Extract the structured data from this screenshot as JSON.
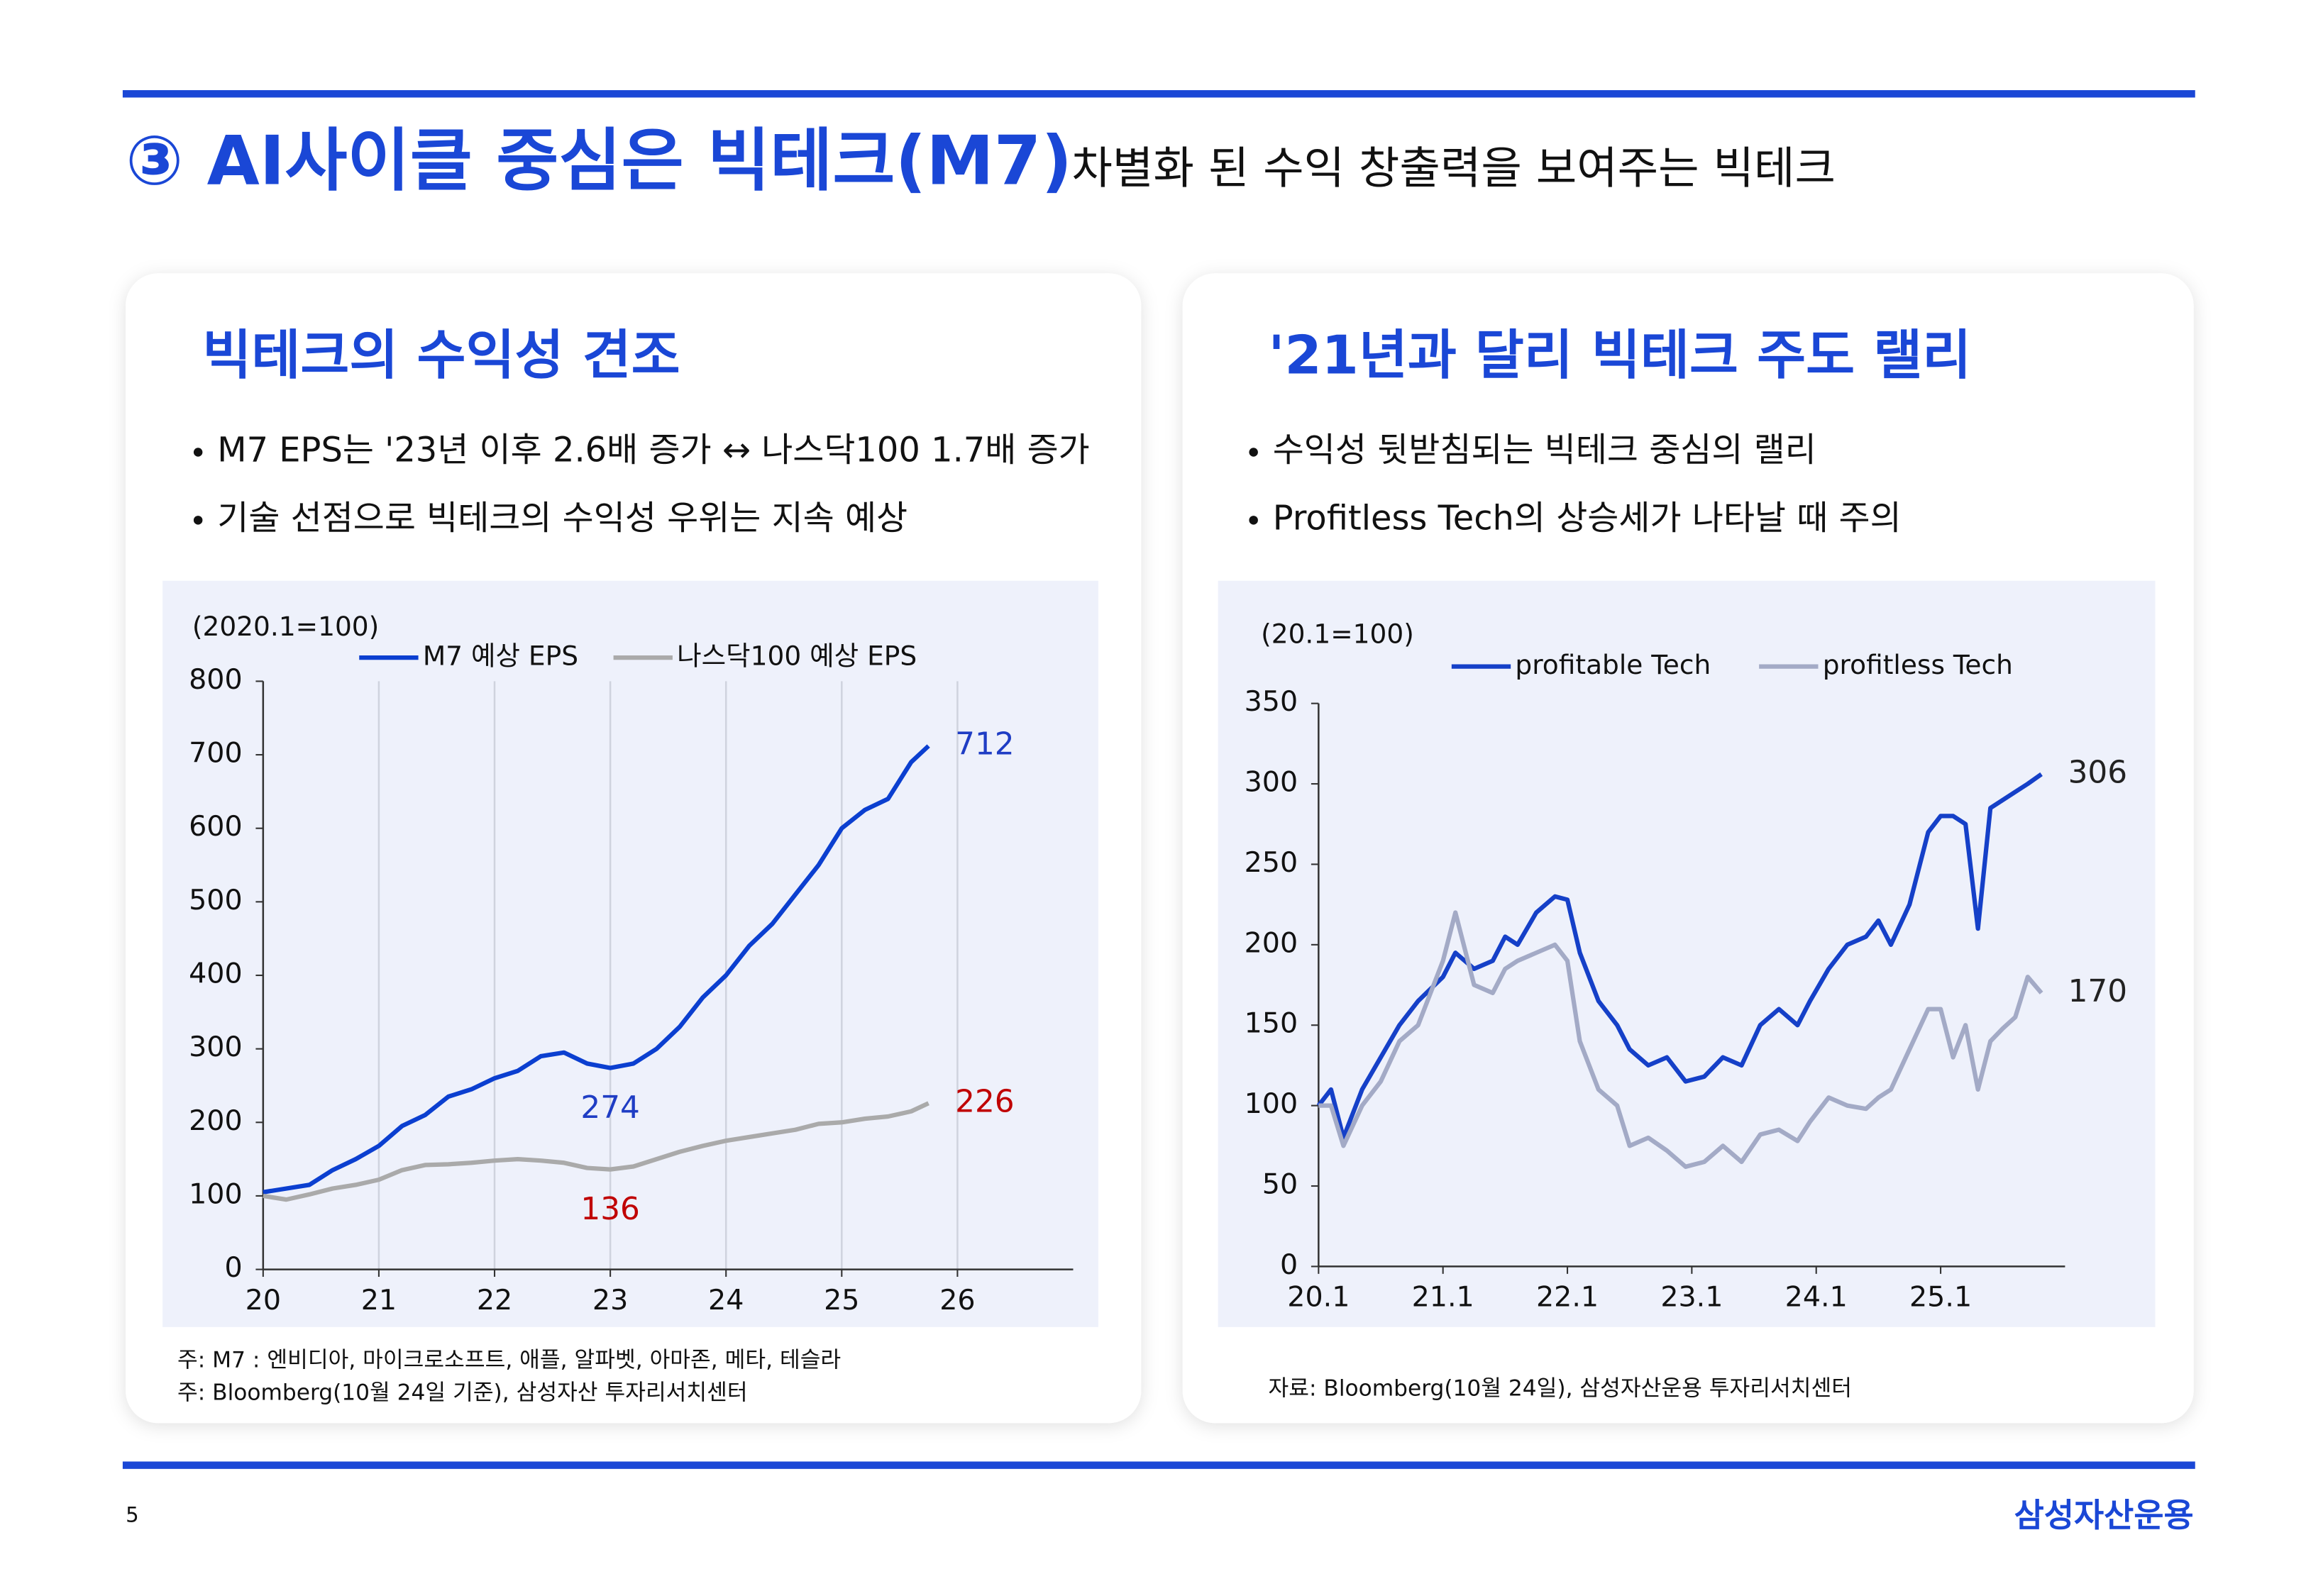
{
  "header": {
    "title": "③ AI사이클 중심은 빅테크(M7)",
    "subtitle": "차별화 된 수익 창출력을 보여주는 빅테크"
  },
  "panels": [
    {
      "heading": "빅테크의 수익성 견조",
      "bullets": [
        "M7 EPS는 '23년 이후 2.6배 증가 ↔ 나스닥100 1.7배 증가",
        "기술 선점으로 빅테크의 수익성 우위는 지속 예상"
      ],
      "notes": [
        "주: M7 : 엔비디아, 마이크로소프트, 애플, 알파벳, 아마존, 메타, 테슬라",
        "주: Bloomberg(10월 24일 기준), 삼성자산 투자리서치센터"
      ]
    },
    {
      "heading": "'21년과 달리 빅테크 주도 랠리",
      "bullets": [
        "수익성 뒷받침되는 빅테크 중심의 랠리",
        "Profitless Tech의 상승세가 나타날 때 주의"
      ],
      "notes": [
        "자료: Bloomberg(10월 24일), 삼성자산운용 투자리서치센터"
      ]
    }
  ],
  "chart_data": [
    {
      "type": "line",
      "unit_label": "(2020.1=100)",
      "x": [
        20.0,
        20.2,
        20.4,
        20.6,
        20.8,
        21.0,
        21.2,
        21.4,
        21.6,
        21.8,
        22.0,
        22.2,
        22.4,
        22.6,
        22.8,
        23.0,
        23.2,
        23.4,
        23.6,
        23.8,
        24.0,
        24.2,
        24.4,
        24.6,
        24.8,
        25.0,
        25.2,
        25.4,
        25.6,
        25.75
      ],
      "series": [
        {
          "name": "M7 예상 EPS",
          "color": "#0b3fd0",
          "values": [
            105,
            110,
            115,
            135,
            150,
            168,
            195,
            210,
            235,
            245,
            260,
            270,
            290,
            295,
            280,
            274,
            280,
            300,
            330,
            370,
            400,
            440,
            470,
            510,
            550,
            600,
            625,
            640,
            690,
            712
          ]
        },
        {
          "name": "나스닥100 예상 EPS",
          "color": "#aaaaaa",
          "values": [
            100,
            95,
            102,
            110,
            115,
            122,
            135,
            142,
            143,
            145,
            148,
            150,
            148,
            145,
            138,
            136,
            140,
            150,
            160,
            168,
            175,
            180,
            185,
            190,
            198,
            200,
            205,
            208,
            215,
            226
          ]
        }
      ],
      "annotations": [
        {
          "x": 25.75,
          "value": 712,
          "color": "#1f3dc4"
        },
        {
          "x": 25.75,
          "value": 226,
          "color": "#c00000"
        },
        {
          "x": 23.0,
          "value": 274,
          "color": "#1f3dc4"
        },
        {
          "x": 23.0,
          "value": 136,
          "color": "#c00000"
        }
      ],
      "xlim": [
        20,
        27
      ],
      "xticks": [
        20,
        21,
        22,
        23,
        24,
        25,
        26
      ],
      "ylim": [
        0,
        800
      ],
      "yticks": [
        0,
        100,
        200,
        300,
        400,
        500,
        600,
        700,
        800
      ],
      "grid_x": true
    },
    {
      "type": "line",
      "unit_label": "(20.1=100)",
      "x": [
        20.0,
        20.1,
        20.2,
        20.35,
        20.5,
        20.65,
        20.8,
        21.0,
        21.1,
        21.25,
        21.4,
        21.5,
        21.6,
        21.75,
        21.9,
        22.0,
        22.1,
        22.25,
        22.4,
        22.5,
        22.65,
        22.8,
        22.95,
        23.1,
        23.25,
        23.4,
        23.55,
        23.7,
        23.85,
        23.95,
        24.1,
        24.25,
        24.4,
        24.5,
        24.6,
        24.75,
        24.9,
        25.0,
        25.1,
        25.2,
        25.3,
        25.4,
        25.5,
        25.6,
        25.7,
        25.81
      ],
      "series": [
        {
          "name": "profitable Tech",
          "color": "#1540c8",
          "values": [
            100,
            110,
            80,
            110,
            130,
            150,
            165,
            180,
            195,
            185,
            190,
            205,
            200,
            220,
            230,
            228,
            195,
            165,
            150,
            135,
            125,
            130,
            115,
            118,
            130,
            125,
            150,
            160,
            150,
            165,
            185,
            200,
            205,
            215,
            200,
            225,
            270,
            280,
            280,
            275,
            210,
            285,
            290,
            295,
            300,
            306
          ]
        },
        {
          "name": "profitless Tech",
          "color": "#a3aac6",
          "values": [
            100,
            100,
            75,
            100,
            115,
            140,
            150,
            190,
            220,
            175,
            170,
            185,
            190,
            195,
            200,
            190,
            140,
            110,
            100,
            75,
            80,
            72,
            62,
            65,
            75,
            65,
            82,
            85,
            78,
            90,
            105,
            100,
            98,
            105,
            110,
            135,
            160,
            160,
            130,
            150,
            110,
            140,
            148,
            155,
            180,
            170
          ]
        }
      ],
      "annotations": [
        {
          "x": 25.81,
          "value": 306,
          "color": "#222222"
        },
        {
          "x": 25.81,
          "value": 170,
          "color": "#222222"
        }
      ],
      "xlim": [
        20,
        26
      ],
      "xticks": [
        {
          "value": 20,
          "label": "20.1"
        },
        {
          "value": 21,
          "label": "21.1"
        },
        {
          "value": 22,
          "label": "22.1"
        },
        {
          "value": 23,
          "label": "23.1"
        },
        {
          "value": 24,
          "label": "24.1"
        },
        {
          "value": 25,
          "label": "25.1"
        }
      ],
      "ylim": [
        0,
        350
      ],
      "yticks": [
        0,
        50,
        100,
        150,
        200,
        250,
        300,
        350
      ],
      "grid_x": false
    }
  ],
  "footer": {
    "page": "5",
    "logo": "삼성자산운용"
  }
}
